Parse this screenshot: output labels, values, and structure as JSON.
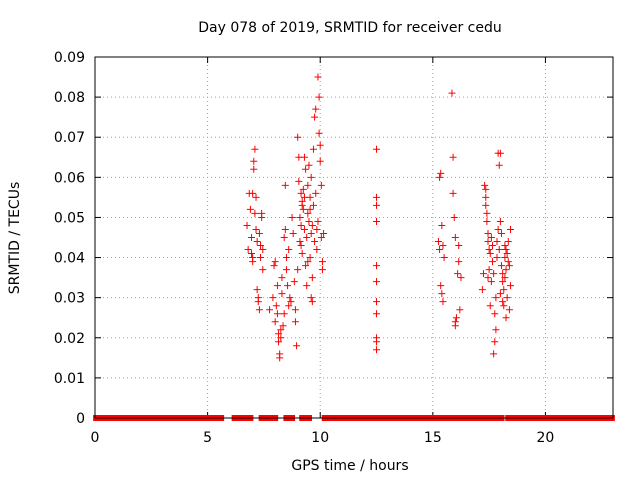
{
  "chart_data": {
    "type": "scatter",
    "title": "Day 078 of 2019, SRMTID for receiver cedu",
    "xlabel": "GPS time / hours",
    "ylabel": "SRMTID / TECUs",
    "xlim": [
      0,
      23
    ],
    "ylim": [
      0,
      0.09
    ],
    "xticks": [
      0,
      5,
      10,
      15,
      20
    ],
    "yticks": [
      0,
      0.01,
      0.02,
      0.03,
      0.04,
      0.05,
      0.06,
      0.07,
      0.08,
      0.09
    ],
    "ytick_labels": [
      "0",
      "0.01",
      "0.02",
      "0.03",
      "0.04",
      "0.05",
      "0.06",
      "0.07",
      "0.08",
      "0.09"
    ],
    "xtick_labels": [
      "0",
      "5",
      "10",
      "15",
      "20"
    ],
    "marker": "+",
    "color": "#ff0000",
    "grid": true,
    "zero_baseline_ranges": [
      [
        0.05,
        5.15
      ],
      [
        5.3,
        5.6
      ],
      [
        6.2,
        6.9
      ],
      [
        7.4,
        8.0
      ],
      [
        8.5,
        8.75
      ],
      [
        9.2,
        9.5
      ],
      [
        10.2,
        14.5
      ],
      [
        14.7,
        15.0
      ],
      [
        15.2,
        15.5
      ],
      [
        15.6,
        16.4
      ],
      [
        16.5,
        17.6
      ],
      [
        17.75,
        18.05
      ],
      [
        18.35,
        22.95
      ]
    ],
    "points": [
      [
        6.75,
        0.048
      ],
      [
        6.8,
        0.042
      ],
      [
        6.85,
        0.056
      ],
      [
        6.9,
        0.052
      ],
      [
        6.95,
        0.045
      ],
      [
        7.0,
        0.04
      ],
      [
        7.0,
        0.056
      ],
      [
        7.05,
        0.062
      ],
      [
        7.05,
        0.064
      ],
      [
        7.1,
        0.067
      ],
      [
        7.1,
        0.051
      ],
      [
        7.15,
        0.055
      ],
      [
        7.15,
        0.047
      ],
      [
        7.2,
        0.044
      ],
      [
        7.2,
        0.032
      ],
      [
        7.25,
        0.03
      ],
      [
        7.25,
        0.029
      ],
      [
        7.3,
        0.027
      ],
      [
        7.3,
        0.046
      ],
      [
        7.35,
        0.043
      ],
      [
        7.35,
        0.04
      ],
      [
        7.4,
        0.05
      ],
      [
        7.4,
        0.051
      ],
      [
        7.45,
        0.042
      ],
      [
        7.45,
        0.037
      ],
      [
        7.0,
        0.039
      ],
      [
        6.95,
        0.041
      ],
      [
        7.75,
        0.027
      ],
      [
        7.9,
        0.03
      ],
      [
        7.95,
        0.038
      ],
      [
        8.0,
        0.039
      ],
      [
        8.0,
        0.024
      ],
      [
        8.05,
        0.028
      ],
      [
        8.1,
        0.033
      ],
      [
        8.1,
        0.026
      ],
      [
        8.15,
        0.021
      ],
      [
        8.15,
        0.019
      ],
      [
        8.2,
        0.016
      ],
      [
        8.2,
        0.015
      ],
      [
        8.25,
        0.02
      ],
      [
        8.25,
        0.022
      ],
      [
        8.3,
        0.031
      ],
      [
        8.3,
        0.035
      ],
      [
        8.35,
        0.023
      ],
      [
        8.4,
        0.026
      ],
      [
        8.4,
        0.045
      ],
      [
        8.45,
        0.047
      ],
      [
        8.45,
        0.058
      ],
      [
        8.5,
        0.04
      ],
      [
        8.5,
        0.037
      ],
      [
        8.55,
        0.033
      ],
      [
        8.6,
        0.042
      ],
      [
        8.6,
        0.028
      ],
      [
        8.65,
        0.03
      ],
      [
        8.7,
        0.029
      ],
      [
        8.75,
        0.05
      ],
      [
        8.8,
        0.046
      ],
      [
        8.85,
        0.034
      ],
      [
        8.9,
        0.027
      ],
      [
        8.9,
        0.024
      ],
      [
        8.95,
        0.018
      ],
      [
        9.0,
        0.07
      ],
      [
        9.0,
        0.037
      ],
      [
        9.05,
        0.065
      ],
      [
        9.05,
        0.059
      ],
      [
        9.1,
        0.05
      ],
      [
        9.1,
        0.044
      ],
      [
        9.15,
        0.056
      ],
      [
        9.15,
        0.048
      ],
      [
        9.2,
        0.053
      ],
      [
        9.2,
        0.041
      ],
      [
        9.25,
        0.057
      ],
      [
        9.25,
        0.052
      ],
      [
        9.3,
        0.055
      ],
      [
        9.3,
        0.047
      ],
      [
        9.35,
        0.062
      ],
      [
        9.35,
        0.038
      ],
      [
        9.4,
        0.045
      ],
      [
        9.4,
        0.033
      ],
      [
        9.45,
        0.058
      ],
      [
        9.45,
        0.051
      ],
      [
        9.5,
        0.049
      ],
      [
        9.5,
        0.063
      ],
      [
        9.55,
        0.055
      ],
      [
        9.55,
        0.04
      ],
      [
        9.6,
        0.03
      ],
      [
        9.6,
        0.046
      ],
      [
        9.65,
        0.048
      ],
      [
        9.65,
        0.035
      ],
      [
        9.7,
        0.053
      ],
      [
        9.7,
        0.067
      ],
      [
        9.75,
        0.044
      ],
      [
        9.75,
        0.075
      ],
      [
        9.8,
        0.077
      ],
      [
        9.8,
        0.056
      ],
      [
        9.85,
        0.047
      ],
      [
        9.85,
        0.042
      ],
      [
        9.9,
        0.049
      ],
      [
        9.9,
        0.085
      ],
      [
        9.95,
        0.08
      ],
      [
        9.95,
        0.071
      ],
      [
        10.0,
        0.068
      ],
      [
        10.0,
        0.064
      ],
      [
        10.05,
        0.058
      ],
      [
        10.05,
        0.045
      ],
      [
        10.1,
        0.039
      ],
      [
        10.1,
        0.037
      ],
      [
        10.15,
        0.046
      ],
      [
        9.45,
        0.039
      ],
      [
        9.55,
        0.052
      ],
      [
        9.6,
        0.06
      ],
      [
        9.3,
        0.065
      ],
      [
        9.2,
        0.054
      ],
      [
        9.15,
        0.043
      ],
      [
        9.65,
        0.029
      ],
      [
        12.5,
        0.067
      ],
      [
        12.5,
        0.055
      ],
      [
        12.5,
        0.053
      ],
      [
        12.5,
        0.049
      ],
      [
        12.5,
        0.038
      ],
      [
        12.5,
        0.034
      ],
      [
        12.5,
        0.029
      ],
      [
        12.5,
        0.026
      ],
      [
        12.5,
        0.02
      ],
      [
        12.5,
        0.019
      ],
      [
        12.5,
        0.017
      ],
      [
        15.25,
        0.044
      ],
      [
        15.3,
        0.042
      ],
      [
        15.3,
        0.06
      ],
      [
        15.35,
        0.061
      ],
      [
        15.35,
        0.033
      ],
      [
        15.4,
        0.048
      ],
      [
        15.4,
        0.031
      ],
      [
        15.45,
        0.029
      ],
      [
        15.45,
        0.043
      ],
      [
        15.5,
        0.04
      ],
      [
        15.85,
        0.081
      ],
      [
        15.9,
        0.065
      ],
      [
        15.9,
        0.056
      ],
      [
        15.95,
        0.05
      ],
      [
        16.0,
        0.024
      ],
      [
        16.0,
        0.023
      ],
      [
        16.05,
        0.025
      ],
      [
        16.1,
        0.036
      ],
      [
        16.15,
        0.039
      ],
      [
        16.15,
        0.043
      ],
      [
        16.2,
        0.027
      ],
      [
        16.25,
        0.035
      ],
      [
        16.0,
        0.045
      ],
      [
        17.2,
        0.032
      ],
      [
        17.25,
        0.036
      ],
      [
        17.3,
        0.058
      ],
      [
        17.35,
        0.057
      ],
      [
        17.35,
        0.053
      ],
      [
        17.4,
        0.051
      ],
      [
        17.4,
        0.049
      ],
      [
        17.45,
        0.046
      ],
      [
        17.45,
        0.044
      ],
      [
        17.5,
        0.042
      ],
      [
        17.5,
        0.037
      ],
      [
        17.55,
        0.028
      ],
      [
        17.6,
        0.034
      ],
      [
        17.65,
        0.039
      ],
      [
        17.7,
        0.016
      ],
      [
        17.75,
        0.026
      ],
      [
        17.8,
        0.03
      ],
      [
        17.85,
        0.04
      ],
      [
        17.85,
        0.044
      ],
      [
        17.9,
        0.047
      ],
      [
        17.9,
        0.066
      ],
      [
        17.95,
        0.063
      ],
      [
        18.0,
        0.066
      ],
      [
        18.0,
        0.049
      ],
      [
        18.05,
        0.046
      ],
      [
        18.05,
        0.038
      ],
      [
        18.1,
        0.036
      ],
      [
        18.1,
        0.034
      ],
      [
        18.15,
        0.032
      ],
      [
        18.15,
        0.028
      ],
      [
        18.2,
        0.043
      ],
      [
        18.2,
        0.04
      ],
      [
        18.25,
        0.037
      ],
      [
        18.25,
        0.025
      ],
      [
        18.3,
        0.041
      ],
      [
        18.3,
        0.03
      ],
      [
        18.35,
        0.039
      ],
      [
        18.35,
        0.044
      ],
      [
        18.4,
        0.038
      ],
      [
        18.4,
        0.027
      ],
      [
        18.45,
        0.047
      ],
      [
        18.45,
        0.033
      ],
      [
        17.55,
        0.041
      ],
      [
        17.6,
        0.045
      ],
      [
        17.65,
        0.043
      ],
      [
        17.95,
        0.042
      ],
      [
        18.0,
        0.031
      ],
      [
        18.1,
        0.029
      ],
      [
        18.2,
        0.035
      ],
      [
        17.8,
        0.022
      ],
      [
        17.75,
        0.019
      ],
      [
        18.25,
        0.042
      ],
      [
        17.35,
        0.055
      ],
      [
        17.45,
        0.035
      ],
      [
        17.7,
        0.036
      ]
    ]
  }
}
